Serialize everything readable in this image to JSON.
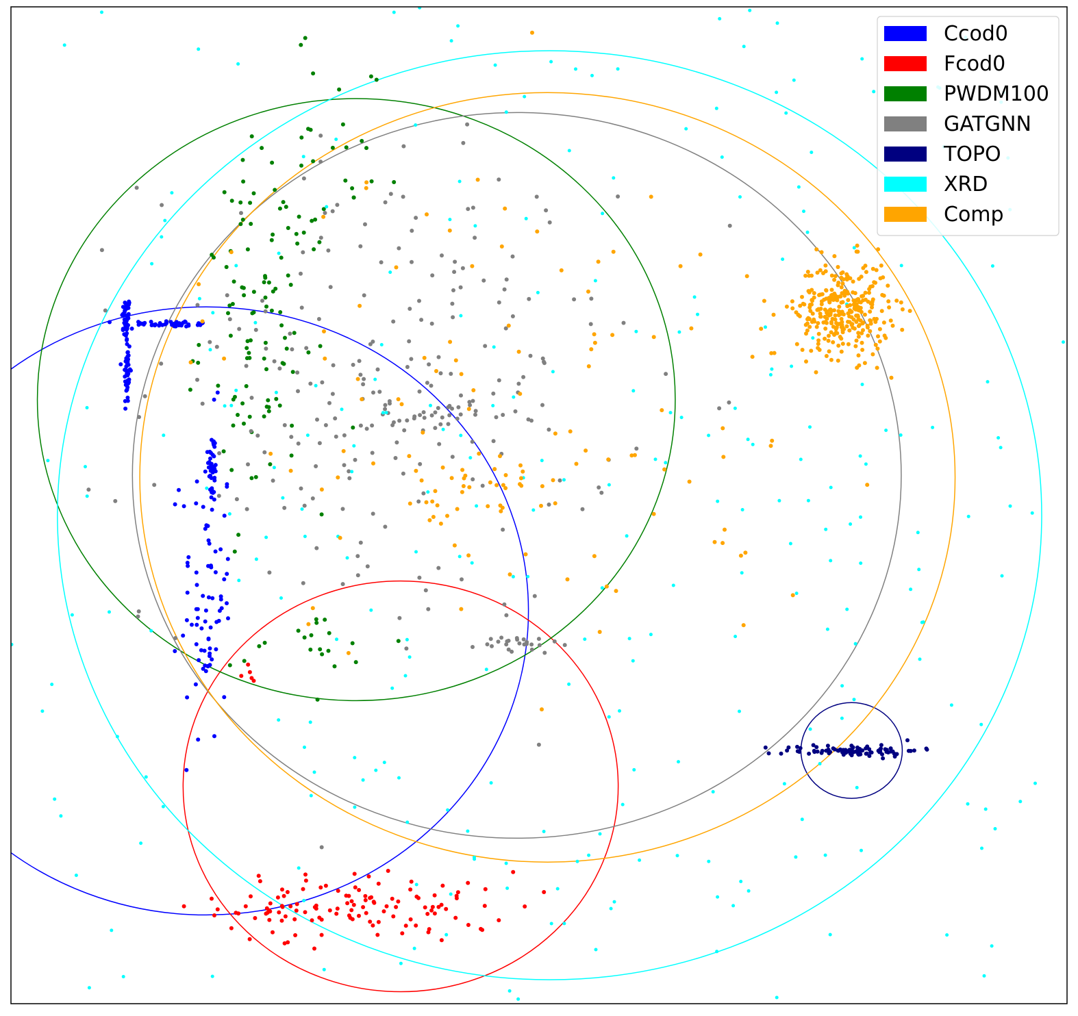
{
  "chart_data": {
    "type": "scatter",
    "title": "",
    "xlabel": "",
    "ylabel": "",
    "axes_visible": false,
    "grid": false,
    "legend_position": "top-right",
    "xlim": [
      0,
      1000
    ],
    "ylim": [
      0,
      1000
    ],
    "series": [
      {
        "name": "Ccod0",
        "color": "#0000ff",
        "radius": 3,
        "circle": {
          "cx": 185,
          "cy": 394,
          "r": 305
        },
        "clusters": [
          {
            "cx": 109,
            "cy": 686,
            "sx": 2,
            "sy": 12,
            "n": 45
          },
          {
            "cx": 150,
            "cy": 682,
            "sx": 22,
            "sy": 1.5,
            "n": 45
          },
          {
            "cx": 110,
            "cy": 632,
            "sx": 1.5,
            "sy": 20,
            "n": 50
          },
          {
            "cx": 191,
            "cy": 537,
            "sx": 2,
            "sy": 18,
            "n": 40
          },
          {
            "cx": 185,
            "cy": 420,
            "sx": 12,
            "sy": 80,
            "n": 70
          },
          {
            "cx": 183,
            "cy": 347,
            "sx": 3,
            "sy": 8,
            "n": 12
          }
        ]
      },
      {
        "name": "Fcod0",
        "color": "#ff0000",
        "radius": 3,
        "circle": {
          "cx": 369,
          "cy": 218,
          "r": 206
        },
        "clusters": [
          {
            "cx": 340,
            "cy": 97,
            "sx": 70,
            "sy": 18,
            "n": 110
          },
          {
            "cx": 250,
            "cy": 95,
            "sx": 10,
            "sy": 12,
            "n": 14
          },
          {
            "cx": 225,
            "cy": 330,
            "sx": 4,
            "sy": 4,
            "n": 5
          }
        ]
      },
      {
        "name": "PWDM100",
        "color": "#008000",
        "radius": 3,
        "circle": {
          "cx": 327,
          "cy": 606,
          "r": 302
        },
        "clusters": [
          {
            "cx": 240,
            "cy": 680,
            "sx": 30,
            "sy": 90,
            "n": 110
          },
          {
            "cx": 290,
            "cy": 360,
            "sx": 40,
            "sy": 20,
            "n": 20
          },
          {
            "cx": 320,
            "cy": 880,
            "sx": 25,
            "sy": 50,
            "n": 20
          }
        ]
      },
      {
        "name": "GATGNN",
        "color": "#808080",
        "radius": 3,
        "circle": {
          "cx": 479,
          "cy": 530,
          "r": 364
        },
        "clusters": [
          {
            "cx": 350,
            "cy": 620,
            "sx": 110,
            "sy": 120,
            "n": 220
          },
          {
            "cx": 400,
            "cy": 590,
            "sx": 40,
            "sy": 6,
            "n": 35
          },
          {
            "cx": 480,
            "cy": 360,
            "sx": 20,
            "sy": 5,
            "n": 25
          }
        ]
      },
      {
        "name": "TOPO",
        "color": "#000080",
        "radius": 3,
        "circle": {
          "cx": 796,
          "cy": 254,
          "r": 48
        },
        "clusters": [
          {
            "cx": 796,
            "cy": 254,
            "sx": 32,
            "sy": 3,
            "n": 90
          }
        ]
      },
      {
        "name": "XRD",
        "color": "#00ffff",
        "radius": 2.5,
        "circle": {
          "cx": 510,
          "cy": 490,
          "r": 466
        },
        "clusters": [
          {
            "cx": 510,
            "cy": 490,
            "sx": 430,
            "sy": 430,
            "n": 520
          }
        ]
      },
      {
        "name": "Comp",
        "color": "#ffa500",
        "radius": 3,
        "circle": {
          "cx": 508,
          "cy": 528,
          "r": 386
        },
        "clusters": [
          {
            "cx": 788,
            "cy": 697,
            "sx": 22,
            "sy": 24,
            "n": 320
          },
          {
            "cx": 480,
            "cy": 600,
            "sx": 150,
            "sy": 130,
            "n": 110
          },
          {
            "cx": 440,
            "cy": 510,
            "sx": 25,
            "sy": 30,
            "n": 30
          }
        ]
      }
    ]
  }
}
